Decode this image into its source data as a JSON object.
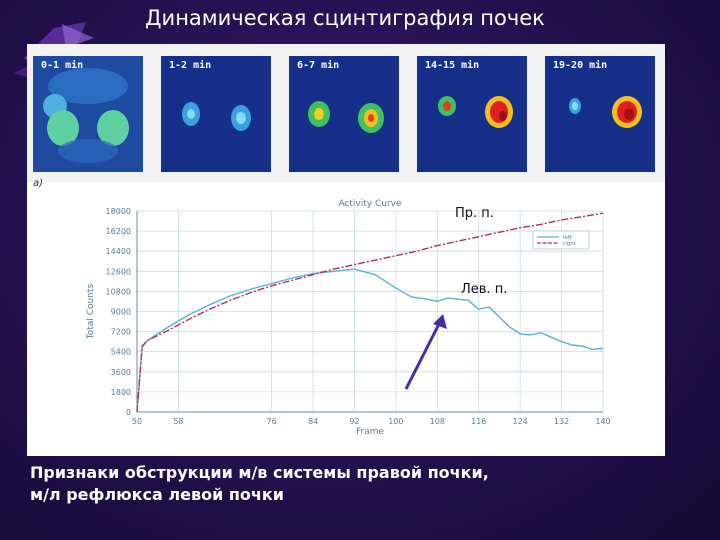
{
  "slide": {
    "title": "Динамическая сцинтиграфия почек",
    "caption_line1": "Признаки обструкции м/в системы правой почки,",
    "caption_line2": "м/л рефлюкса левой почки",
    "figure_letter": "а)"
  },
  "frames": [
    {
      "label": "0-1 min"
    },
    {
      "label": "1-2 min"
    },
    {
      "label": "6-7 min"
    },
    {
      "label": "14-15 min"
    },
    {
      "label": "19-20 min"
    }
  ],
  "annotations": {
    "right_kidney": "Пр. п.",
    "left_kidney": "Лев. п."
  },
  "chart_data": {
    "type": "line",
    "title": "Activity Curve",
    "xlabel": "Frame",
    "ylabel": "Total Counts",
    "xlim": [
      50,
      140
    ],
    "ylim": [
      0,
      18000
    ],
    "xticks": [
      "50",
      "58",
      "76",
      "84",
      "92",
      "100",
      "108",
      "116",
      "124",
      "132",
      "140"
    ],
    "yticks": [
      "0",
      "1800",
      "3600",
      "5400",
      "7200",
      "9000",
      "10800",
      "12600",
      "14400",
      "16200",
      "18000"
    ],
    "legend": [
      "left",
      "right"
    ],
    "legend_position": "top-right",
    "grid": true,
    "series": [
      {
        "name": "left",
        "color": "#5ab0d8",
        "x": [
          50,
          51,
          52,
          56,
          60,
          64,
          68,
          72,
          76,
          80,
          84,
          88,
          92,
          96,
          100,
          103,
          106,
          108,
          110,
          112,
          114,
          116,
          118,
          120,
          122,
          124,
          126,
          128,
          130,
          132,
          134,
          136,
          138,
          140
        ],
        "y": [
          0,
          5800,
          6400,
          7600,
          8700,
          9600,
          10400,
          11000,
          11500,
          12000,
          12400,
          12600,
          12800,
          12300,
          11100,
          10300,
          10100,
          9900,
          10200,
          10100,
          10000,
          9200,
          9400,
          8500,
          7600,
          7000,
          6900,
          7100,
          6700,
          6300,
          6000,
          5900,
          5600,
          5700
        ]
      },
      {
        "name": "right",
        "color": "#b03060",
        "x": [
          50,
          51,
          52,
          56,
          60,
          64,
          68,
          72,
          76,
          80,
          84,
          88,
          92,
          96,
          100,
          104,
          108,
          112,
          116,
          120,
          124,
          128,
          132,
          136,
          140
        ],
        "y": [
          0,
          5900,
          6400,
          7300,
          8300,
          9200,
          10000,
          10700,
          11300,
          11800,
          12300,
          12800,
          13200,
          13600,
          14000,
          14400,
          14900,
          15300,
          15700,
          16100,
          16500,
          16800,
          17200,
          17500,
          17800
        ]
      }
    ]
  },
  "colors": {
    "arrow": "#4b2aa8",
    "grid": "#c8dcec",
    "axis": "#6a8aa8"
  }
}
